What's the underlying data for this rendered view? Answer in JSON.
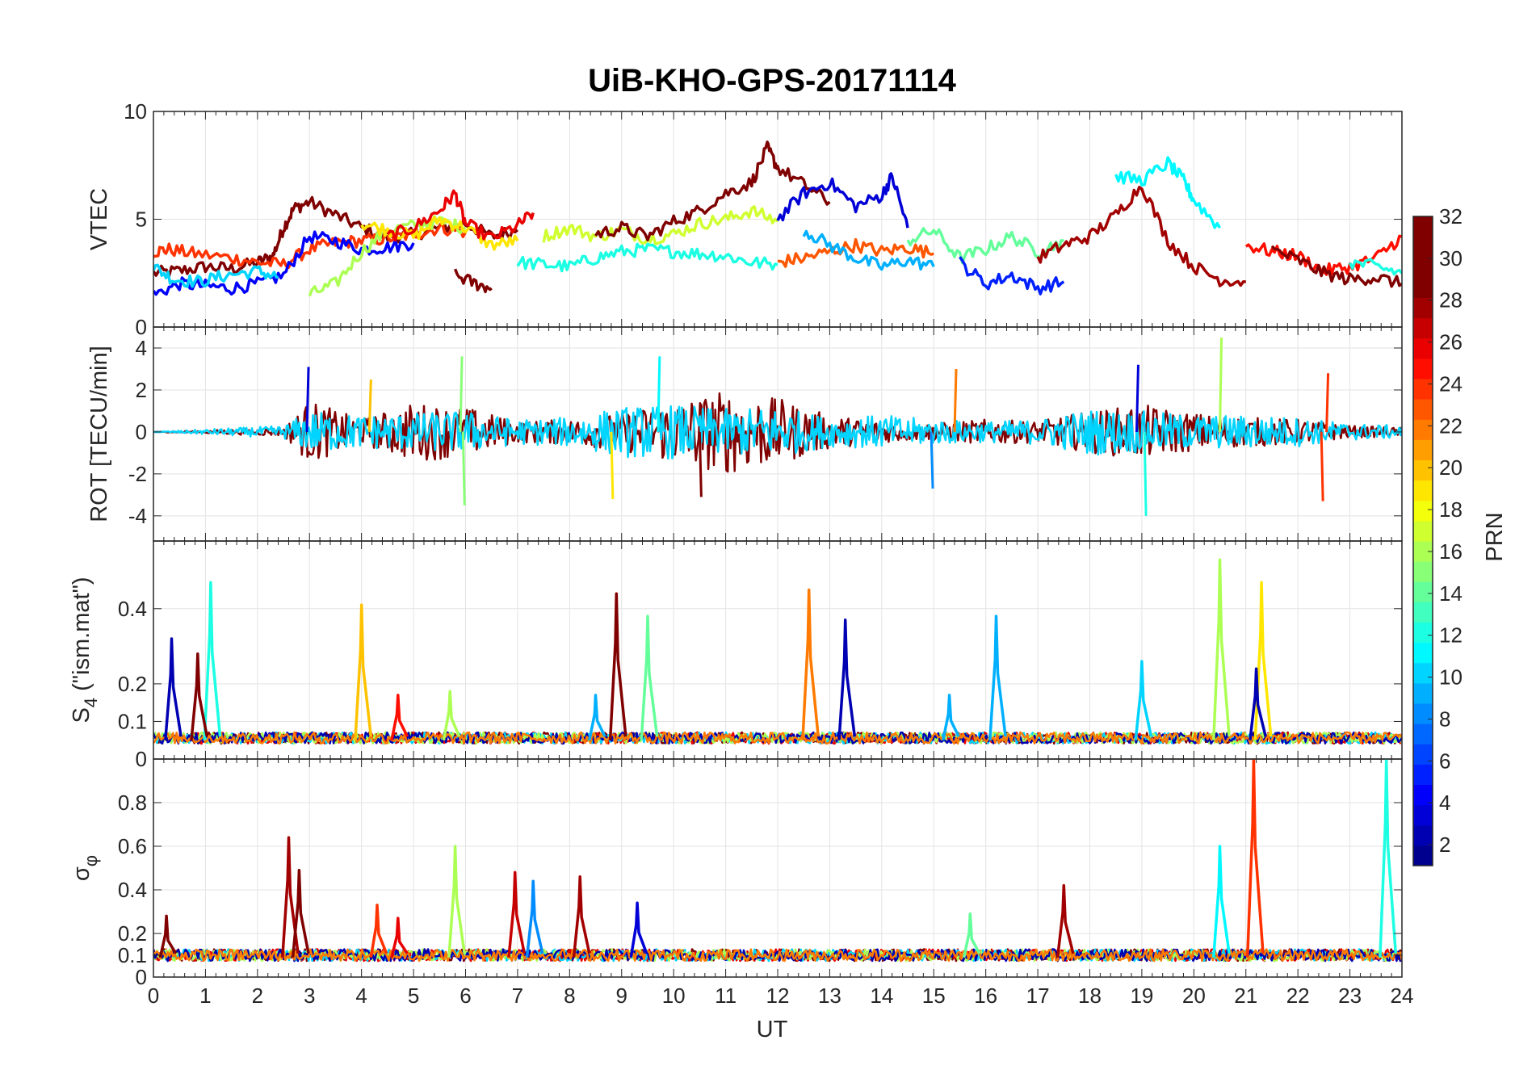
{
  "chart_data": {
    "type": "line",
    "title": "UiB-KHO-GPS-20171114",
    "xlabel": "UT",
    "x_ticks": [
      "0",
      "1",
      "2",
      "3",
      "4",
      "5",
      "6",
      "7",
      "8",
      "9",
      "10",
      "11",
      "12",
      "13",
      "14",
      "15",
      "16",
      "17",
      "18",
      "19",
      "20",
      "21",
      "22",
      "23",
      "24"
    ],
    "xlim": [
      0,
      24
    ],
    "grid": true,
    "colorbar": {
      "label": "PRN",
      "range": [
        1,
        32
      ],
      "ticks": [
        "2",
        "4",
        "6",
        "8",
        "10",
        "12",
        "14",
        "16",
        "18",
        "20",
        "22",
        "24",
        "26",
        "28",
        "30",
        "32"
      ],
      "colormap": "jet",
      "levels": 32,
      "colors": [
        "#00008f",
        "#0000b3",
        "#0000d7",
        "#0000fb",
        "#0020ff",
        "#0044ff",
        "#0068ff",
        "#008cff",
        "#00b0ff",
        "#00d4ff",
        "#00f8ff",
        "#1cffe3",
        "#40ffbf",
        "#64ff9b",
        "#88ff77",
        "#acff53",
        "#d0ff2f",
        "#f4ff0b",
        "#ffe600",
        "#ffc200",
        "#ff9e00",
        "#ff7a00",
        "#ff5600",
        "#ff3200",
        "#ff0e00",
        "#ea0000",
        "#c60000",
        "#a20000",
        "#800000",
        "#800000",
        "#800000",
        "#800000"
      ]
    },
    "panels": [
      {
        "id": "vtec",
        "ylabel": "VTEC",
        "ylim": [
          0,
          10
        ],
        "y_ticks": [
          "0",
          "5",
          "10"
        ],
        "y_tick_values": [
          0,
          5,
          10
        ],
        "series": [
          {
            "prn": 30,
            "x": [
              0,
              0.5,
              1,
              1.5,
              2,
              2.3,
              2.5,
              2.7,
              3,
              3.5,
              4,
              4.5,
              5,
              5.5,
              6,
              6.5,
              7
            ],
            "y": [
              2.5,
              2.6,
              2.8,
              2.7,
              3.0,
              3.3,
              4.6,
              5.5,
              5.8,
              5.2,
              4.6,
              4.2,
              4.3,
              4.6,
              4.8,
              4.2,
              4.5
            ]
          },
          {
            "prn": 24,
            "x": [
              0,
              0.3,
              0.8,
              1.5,
              2,
              2.5,
              3,
              3.5,
              4,
              4.5,
              5,
              5.5,
              6
            ],
            "y": [
              3.5,
              3.6,
              3.4,
              3.2,
              3.0,
              2.9,
              3.6,
              3.9,
              4.0,
              4.1,
              4.3,
              4.6,
              4.4
            ]
          },
          {
            "prn": 4,
            "x": [
              0,
              0.5,
              1,
              1.5,
              2,
              2.5,
              3,
              3.5,
              4,
              4.5,
              5
            ],
            "y": [
              1.5,
              2.0,
              1.9,
              1.8,
              2.0,
              2.4,
              4.2,
              4.0,
              3.6,
              3.7,
              3.9
            ]
          },
          {
            "prn": 10,
            "x": [
              0,
              0.4,
              0.9,
              1.4,
              2,
              2.4
            ],
            "y": [
              2.8,
              2.2,
              2.1,
              2.4,
              2.6,
              2.3
            ]
          },
          {
            "prn": 16,
            "x": [
              3,
              3.5,
              4,
              4.5,
              5,
              5.5,
              6
            ],
            "y": [
              1.5,
              2.0,
              3.5,
              4.5,
              4.7,
              4.9,
              4.6
            ]
          },
          {
            "prn": 19,
            "x": [
              4,
              4.5,
              5,
              5.5,
              6,
              6.5,
              7
            ],
            "y": [
              4.8,
              4.5,
              4.2,
              5.0,
              4.6,
              3.8,
              4.0
            ]
          },
          {
            "prn": 26,
            "x": [
              4.5,
              5,
              5.5,
              5.8,
              6,
              6.5,
              7,
              7.3
            ],
            "y": [
              4.2,
              4.6,
              5.4,
              6.2,
              4.8,
              4.1,
              4.7,
              5.3
            ]
          },
          {
            "prn": 31,
            "x": [
              5.8,
              6.2,
              6.5
            ],
            "y": [
              2.4,
              2.0,
              1.8
            ]
          },
          {
            "prn": 12,
            "x": [
              7,
              7.5,
              8,
              8.5,
              9,
              9.5,
              10,
              10.5,
              11,
              11.5,
              12
            ],
            "y": [
              3.0,
              2.9,
              2.8,
              3.2,
              3.5,
              3.6,
              3.5,
              3.4,
              3.3,
              3.0,
              2.9
            ]
          },
          {
            "prn": 17,
            "x": [
              7.5,
              8,
              8.5,
              9,
              9.5,
              10,
              10.5,
              11,
              11.5,
              12
            ],
            "y": [
              4.2,
              4.6,
              4.2,
              4.5,
              4.1,
              4.3,
              4.8,
              5.0,
              5.4,
              4.9
            ]
          },
          {
            "prn": 29,
            "x": [
              8.5,
              9,
              9.5,
              10,
              10.5,
              11,
              11.5,
              11.8,
              12,
              12.5,
              13
            ],
            "y": [
              4.3,
              4.6,
              4.2,
              4.9,
              5.4,
              6.2,
              6.7,
              8.3,
              7.4,
              6.6,
              5.8
            ]
          },
          {
            "prn": 3,
            "x": [
              12,
              12.5,
              13,
              13.5,
              14,
              14.2,
              14.5
            ],
            "y": [
              5.0,
              6.2,
              6.7,
              5.6,
              6.1,
              7.0,
              4.6
            ]
          },
          {
            "prn": 23,
            "x": [
              12,
              12.5,
              13,
              13.5,
              14,
              14.5,
              15
            ],
            "y": [
              3.0,
              3.2,
              3.5,
              3.8,
              3.5,
              3.7,
              3.4
            ]
          },
          {
            "prn": 9,
            "x": [
              12.5,
              13,
              13.5,
              14,
              14.5,
              15
            ],
            "y": [
              4.5,
              3.8,
              3.2,
              2.8,
              3.1,
              2.8
            ]
          },
          {
            "prn": 14,
            "x": [
              14.5,
              15,
              15.5,
              16,
              16.5,
              17,
              17.5
            ],
            "y": [
              4.0,
              4.5,
              3.2,
              3.6,
              4.2,
              3.5,
              4.0
            ]
          },
          {
            "prn": 5,
            "x": [
              15.5,
              16,
              16.5,
              17,
              17.5
            ],
            "y": [
              3.0,
              2.0,
              2.4,
              1.8,
              2.1
            ]
          },
          {
            "prn": 28,
            "x": [
              17,
              17.5,
              18,
              18.5,
              19,
              19.5,
              20,
              20.5,
              21
            ],
            "y": [
              3.2,
              3.8,
              4.2,
              5.2,
              6.6,
              4.0,
              2.8,
              2.2,
              2.1
            ]
          },
          {
            "prn": 11,
            "x": [
              18.5,
              19,
              19.5,
              19.8,
              20,
              20.5
            ],
            "y": [
              7.0,
              6.8,
              7.6,
              6.8,
              5.9,
              4.6
            ]
          },
          {
            "prn": 25,
            "x": [
              21,
              21.5,
              22,
              22.5,
              23,
              23.5,
              24
            ],
            "y": [
              3.8,
              3.5,
              3.3,
              2.6,
              2.8,
              3.2,
              4.2
            ]
          },
          {
            "prn": 31,
            "x": [
              21.5,
              22,
              22.5,
              23,
              23.5,
              24
            ],
            "y": [
              3.6,
              3.1,
              2.5,
              2.2,
              2.3,
              2.0
            ]
          },
          {
            "prn": 12,
            "x": [
              23,
              23.5,
              24
            ],
            "y": [
              3.0,
              2.8,
              2.5
            ]
          }
        ]
      },
      {
        "id": "rot",
        "ylabel": "ROT [TECU/min]",
        "ylim": [
          -5.2,
          5
        ],
        "y_ticks": [
          "-4",
          "-2",
          "0",
          "2",
          "4"
        ],
        "y_tick_values": [
          -4,
          -2,
          0,
          2,
          4
        ],
        "series": [
          {
            "prn": 31,
            "x": [
              0,
              2.5,
              3,
              4,
              5,
              6,
              7,
              8,
              9,
              10,
              11,
              12,
              13,
              14,
              15,
              16,
              17,
              18,
              19,
              20,
              21,
              22,
              23,
              24
            ],
            "y": [
              0,
              0.2,
              1.5,
              0.6,
              1.4,
              1.2,
              0.5,
              0.6,
              0.9,
              1.5,
              2.0,
              1.6,
              0.8,
              0.5,
              0.4,
              0.6,
              0.5,
              1.0,
              1.3,
              0.9,
              0.7,
              0.6,
              0.3,
              0.2
            ]
          },
          {
            "prn": 10,
            "x": [
              0,
              2.5,
              3,
              4,
              5,
              6,
              7,
              8,
              9,
              10,
              11,
              12,
              13,
              14,
              15,
              16,
              17,
              18,
              19,
              20,
              21,
              22,
              23,
              24
            ],
            "y": [
              0,
              0.3,
              1.0,
              0.8,
              0.9,
              1.0,
              0.6,
              0.7,
              1.2,
              1.3,
              1.1,
              1.2,
              0.7,
              0.8,
              0.6,
              0.5,
              0.6,
              1.1,
              1.0,
              0.8,
              0.8,
              0.7,
              0.4,
              0.3
            ]
          }
        ],
        "spikes": [
          {
            "prn": 3,
            "x": 2.95,
            "y": 3.1
          },
          {
            "prn": 20,
            "x": 4.15,
            "y": 2.5
          },
          {
            "prn": 15,
            "x": 5.9,
            "y": 3.6
          },
          {
            "prn": 15,
            "x": 5.95,
            "y": -3.5
          },
          {
            "prn": 11,
            "x": 9.7,
            "y": 3.6
          },
          {
            "prn": 19,
            "x": 8.8,
            "y": -3.2
          },
          {
            "prn": 12,
            "x": 19.05,
            "y": -4.0
          },
          {
            "prn": 3,
            "x": 18.9,
            "y": 3.2
          },
          {
            "prn": 16,
            "x": 20.5,
            "y": 4.5
          },
          {
            "prn": 24,
            "x": 22.45,
            "y": -3.3
          },
          {
            "prn": 24,
            "x": 22.55,
            "y": 2.8
          },
          {
            "prn": 22,
            "x": 15.4,
            "y": 3.0
          },
          {
            "prn": 30,
            "x": 10.5,
            "y": -3.1
          },
          {
            "prn": 8,
            "x": 14.95,
            "y": -2.7
          }
        ]
      },
      {
        "id": "s4",
        "ylabel": "S4 (\"ism.mat\")",
        "ylabel_main": "S",
        "ylabel_sub": "4",
        "ylabel_rest": " (\"ism.mat\")",
        "ylim": [
          0,
          0.58
        ],
        "y_ticks": [
          "0",
          "0.1",
          "0.2",
          "0.4"
        ],
        "y_tick_values": [
          0,
          0.1,
          0.2,
          0.4
        ],
        "baseline": 0.05,
        "peaks": [
          {
            "prn": 2,
            "x": 0.35,
            "y": 0.32
          },
          {
            "prn": 12,
            "x": 1.1,
            "y": 0.47
          },
          {
            "prn": 29,
            "x": 0.85,
            "y": 0.28
          },
          {
            "prn": 20,
            "x": 4.0,
            "y": 0.41
          },
          {
            "prn": 25,
            "x": 4.7,
            "y": 0.17
          },
          {
            "prn": 16,
            "x": 5.7,
            "y": 0.18
          },
          {
            "prn": 9,
            "x": 8.5,
            "y": 0.17
          },
          {
            "prn": 30,
            "x": 8.9,
            "y": 0.44
          },
          {
            "prn": 14,
            "x": 9.5,
            "y": 0.38
          },
          {
            "prn": 22,
            "x": 12.6,
            "y": 0.45
          },
          {
            "prn": 2,
            "x": 13.3,
            "y": 0.37
          },
          {
            "prn": 9,
            "x": 15.3,
            "y": 0.17
          },
          {
            "prn": 9,
            "x": 16.2,
            "y": 0.38
          },
          {
            "prn": 10,
            "x": 19.0,
            "y": 0.26
          },
          {
            "prn": 16,
            "x": 20.5,
            "y": 0.53
          },
          {
            "prn": 19,
            "x": 21.3,
            "y": 0.47
          },
          {
            "prn": 2,
            "x": 21.2,
            "y": 0.24
          }
        ]
      },
      {
        "id": "sigma_phi",
        "ylabel": "σφ",
        "ylabel_main": "σ",
        "ylabel_sub": "φ",
        "ylim": [
          0,
          1
        ],
        "y_ticks": [
          "0",
          "0.1",
          "0.2",
          "0.4",
          "0.6",
          "0.8"
        ],
        "y_tick_values": [
          0,
          0.1,
          0.2,
          0.4,
          0.6,
          0.8
        ],
        "baseline": 0.09,
        "peaks": [
          {
            "prn": 30,
            "x": 0.25,
            "y": 0.28
          },
          {
            "prn": 28,
            "x": 2.6,
            "y": 0.64
          },
          {
            "prn": 30,
            "x": 2.8,
            "y": 0.49
          },
          {
            "prn": 24,
            "x": 4.3,
            "y": 0.33
          },
          {
            "prn": 26,
            "x": 4.7,
            "y": 0.27
          },
          {
            "prn": 16,
            "x": 5.8,
            "y": 0.6
          },
          {
            "prn": 27,
            "x": 6.95,
            "y": 0.48
          },
          {
            "prn": 8,
            "x": 7.3,
            "y": 0.44
          },
          {
            "prn": 28,
            "x": 8.2,
            "y": 0.46
          },
          {
            "prn": 3,
            "x": 9.3,
            "y": 0.34
          },
          {
            "prn": 14,
            "x": 15.7,
            "y": 0.29
          },
          {
            "prn": 28,
            "x": 17.5,
            "y": 0.42
          },
          {
            "prn": 11,
            "x": 20.5,
            "y": 0.6
          },
          {
            "prn": 24,
            "x": 21.15,
            "y": 1.0
          },
          {
            "prn": 12,
            "x": 23.7,
            "y": 1.0
          }
        ]
      }
    ]
  }
}
